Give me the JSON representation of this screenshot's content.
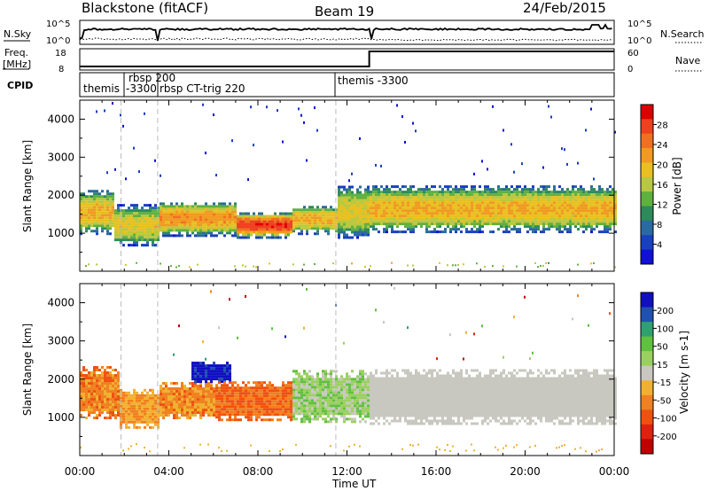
{
  "header": {
    "station": "Blackstone (fitACF)",
    "beam": "Beam 19",
    "date": "24/Feb/2015"
  },
  "labels": {
    "nsky": "N.Sky",
    "nsearch": "N.Search",
    "freq_line1": "Freq.",
    "freq_line2": "[MHz]",
    "nave": "Nave",
    "cpid": "CPID",
    "nsky_ticks": [
      "10^5",
      "10^0"
    ],
    "nsearch_ticks": [
      "10^5",
      "10^0"
    ],
    "freq_ticks": [
      "18",
      "8"
    ],
    "nave_ticks": [
      "60",
      "0"
    ]
  },
  "cpid_segments": [
    {
      "text": "themis",
      "start_hour": 0.0
    },
    {
      "text": "rbsp 200",
      "start_hour": 1.85
    },
    {
      "text": "-3300",
      "start_hour": 1.85
    },
    {
      "text": "rbsp CT-trig 220",
      "start_hour": 3.5
    },
    {
      "text": "themis -3300",
      "start_hour": 11.5
    }
  ],
  "axes": {
    "ylabel": "Slant Range [km]",
    "xlabel": "Time UT",
    "xticks": [
      "00:00",
      "04:00",
      "08:00",
      "12:00",
      "16:00",
      "20:00",
      "00:00"
    ],
    "yticks": [
      "1000",
      "2000",
      "3000",
      "4000"
    ]
  },
  "colorbars": {
    "power": {
      "label": "Power [dB]",
      "ticks": [
        "28",
        "24",
        "20",
        "16",
        "12",
        "8",
        "4"
      ],
      "colors": [
        "#dd0000",
        "#f04020",
        "#f07020",
        "#f09a20",
        "#e8c020",
        "#b8c840",
        "#60b040",
        "#2e8a5a",
        "#2a6aa0",
        "#1a3fc0",
        "#1010d8"
      ]
    },
    "velocity": {
      "label": "Velocity [m s-1]",
      "ticks": [
        "200",
        "100",
        "50",
        "15",
        "-15",
        "-50",
        "-100",
        "-200"
      ],
      "colors": [
        "#1010c0",
        "#2050b0",
        "#30a070",
        "#60c040",
        "#9ad060",
        "#c8c8c0",
        "#f0b030",
        "#f08020",
        "#f05010",
        "#e02010",
        "#c00000"
      ]
    }
  },
  "chart_data": [
    {
      "type": "heatmap",
      "panel": "power",
      "title": "",
      "xlabel": "Time UT",
      "ylabel": "Slant Range [km]",
      "xlim_hours": [
        0,
        24
      ],
      "ylim_km": [
        0,
        4500
      ],
      "colorbar": "Power [dB]",
      "colorbar_range": [
        0,
        30
      ],
      "bands": [
        {
          "t0": 0.0,
          "t1": 1.5,
          "r0": 950,
          "r1": 2100,
          "core_db": 20
        },
        {
          "t0": 1.5,
          "t1": 3.5,
          "r0": 650,
          "r1": 1700,
          "core_db": 18
        },
        {
          "t0": 3.5,
          "t1": 7.0,
          "r0": 900,
          "r1": 1800,
          "core_db": 22
        },
        {
          "t0": 7.0,
          "t1": 9.5,
          "r0": 850,
          "r1": 1500,
          "core_db": 28
        },
        {
          "t0": 9.5,
          "t1": 11.5,
          "r0": 950,
          "r1": 1700,
          "core_db": 20
        },
        {
          "t0": 11.5,
          "t1": 13.0,
          "r0": 850,
          "r1": 2200,
          "core_db": 18
        },
        {
          "t0": 13.0,
          "t1": 24.0,
          "r0": 1000,
          "r1": 2200,
          "core_db": 20
        }
      ]
    },
    {
      "type": "heatmap",
      "panel": "velocity",
      "title": "",
      "xlabel": "Time UT",
      "ylabel": "Slant Range [km]",
      "xlim_hours": [
        0,
        24
      ],
      "ylim_km": [
        0,
        4500
      ],
      "colorbar": "Velocity [m s-1]",
      "colorbar_range": [
        -200,
        200
      ],
      "bands": [
        {
          "t0": 0.0,
          "t1": 1.7,
          "r0": 950,
          "r1": 2300,
          "velocity": -80
        },
        {
          "t0": 1.7,
          "t1": 3.5,
          "r0": 700,
          "r1": 1700,
          "velocity": -60
        },
        {
          "t0": 3.5,
          "t1": 6.0,
          "r0": 950,
          "r1": 1900,
          "velocity": -70
        },
        {
          "t0": 5.0,
          "t1": 6.8,
          "r0": 1900,
          "r1": 2400,
          "velocity": 200
        },
        {
          "t0": 6.0,
          "t1": 9.5,
          "r0": 900,
          "r1": 1900,
          "velocity": -100
        },
        {
          "t0": 9.5,
          "t1": 13.0,
          "r0": 850,
          "r1": 2200,
          "velocity": 40
        },
        {
          "t0": 13.0,
          "t1": 24.0,
          "r0": 800,
          "r1": 2200,
          "velocity": 0
        }
      ]
    }
  ]
}
